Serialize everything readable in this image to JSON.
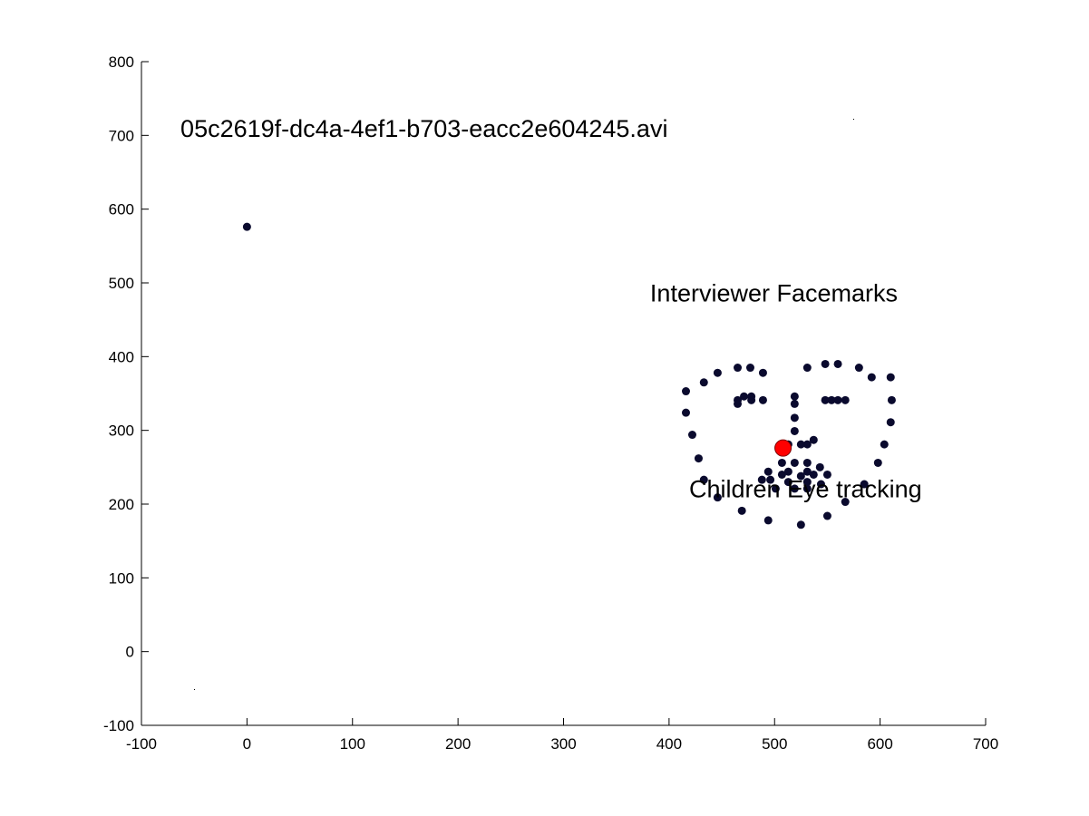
{
  "chart_data": {
    "type": "scatter",
    "title": "",
    "xlabel": "",
    "ylabel": "",
    "xlim": [
      -100,
      700
    ],
    "ylim": [
      -100,
      800
    ],
    "grid": false,
    "x_ticks": [
      -100,
      0,
      100,
      200,
      300,
      400,
      500,
      600,
      700
    ],
    "y_ticks": [
      -100,
      0,
      100,
      200,
      300,
      400,
      500,
      600,
      700,
      800
    ],
    "x_tick_labels": [
      "-100",
      "0",
      "100",
      "200",
      "300",
      "400",
      "500",
      "600",
      "700"
    ],
    "y_tick_labels": [
      "-100",
      "0",
      "100",
      "200",
      "300",
      "400",
      "500",
      "600",
      "700",
      "800"
    ],
    "annotations": [
      {
        "text": "05c2619f-dc4a-4ef1-b703-eacc2e604245.avi",
        "x": -63,
        "y": 698
      },
      {
        "text": "Interviewer Facemarks",
        "x": 382,
        "y": 475
      },
      {
        "text": "Children Eye tracking",
        "x": 419,
        "y": 209
      }
    ],
    "series": [
      {
        "color": "#0a0a2e",
        "marker": "circle",
        "points": [
          [
            0,
            576
          ],
          [
            416,
            353
          ],
          [
            416,
            324
          ],
          [
            422,
            294
          ],
          [
            428,
            262
          ],
          [
            433,
            233
          ],
          [
            446,
            209
          ],
          [
            469,
            191
          ],
          [
            494,
            178
          ],
          [
            525,
            172
          ],
          [
            550,
            184
          ],
          [
            567,
            203
          ],
          [
            585,
            227
          ],
          [
            598,
            256
          ],
          [
            604,
            281
          ],
          [
            610,
            311
          ],
          [
            611,
            341
          ],
          [
            610,
            372
          ],
          [
            433,
            365
          ],
          [
            446,
            378
          ],
          [
            465,
            385
          ],
          [
            477,
            385
          ],
          [
            489,
            378
          ],
          [
            531,
            385
          ],
          [
            548,
            390
          ],
          [
            560,
            390
          ],
          [
            580,
            385
          ],
          [
            592,
            372
          ],
          [
            465,
            336
          ],
          [
            465,
            341
          ],
          [
            471,
            346
          ],
          [
            478,
            346
          ],
          [
            478,
            341
          ],
          [
            489,
            341
          ],
          [
            548,
            341
          ],
          [
            554,
            341
          ],
          [
            560,
            341
          ],
          [
            567,
            341
          ],
          [
            519,
            346
          ],
          [
            519,
            336
          ],
          [
            519,
            317
          ],
          [
            519,
            299
          ],
          [
            513,
            281
          ],
          [
            525,
            281
          ],
          [
            531,
            281
          ],
          [
            537,
            287
          ],
          [
            507,
            256
          ],
          [
            519,
            256
          ],
          [
            531,
            256
          ],
          [
            543,
            250
          ],
          [
            494,
            244
          ],
          [
            507,
            240
          ],
          [
            513,
            244
          ],
          [
            525,
            238
          ],
          [
            531,
            244
          ],
          [
            537,
            240
          ],
          [
            550,
            240
          ],
          [
            488,
            233
          ],
          [
            496,
            233
          ],
          [
            513,
            230
          ],
          [
            531,
            230
          ],
          [
            544,
            227
          ],
          [
            501,
            221
          ],
          [
            519,
            221
          ],
          [
            531,
            221
          ]
        ]
      },
      {
        "color": "#ff0000",
        "marker": "circle-large",
        "points": [
          [
            508,
            276
          ]
        ]
      }
    ]
  }
}
